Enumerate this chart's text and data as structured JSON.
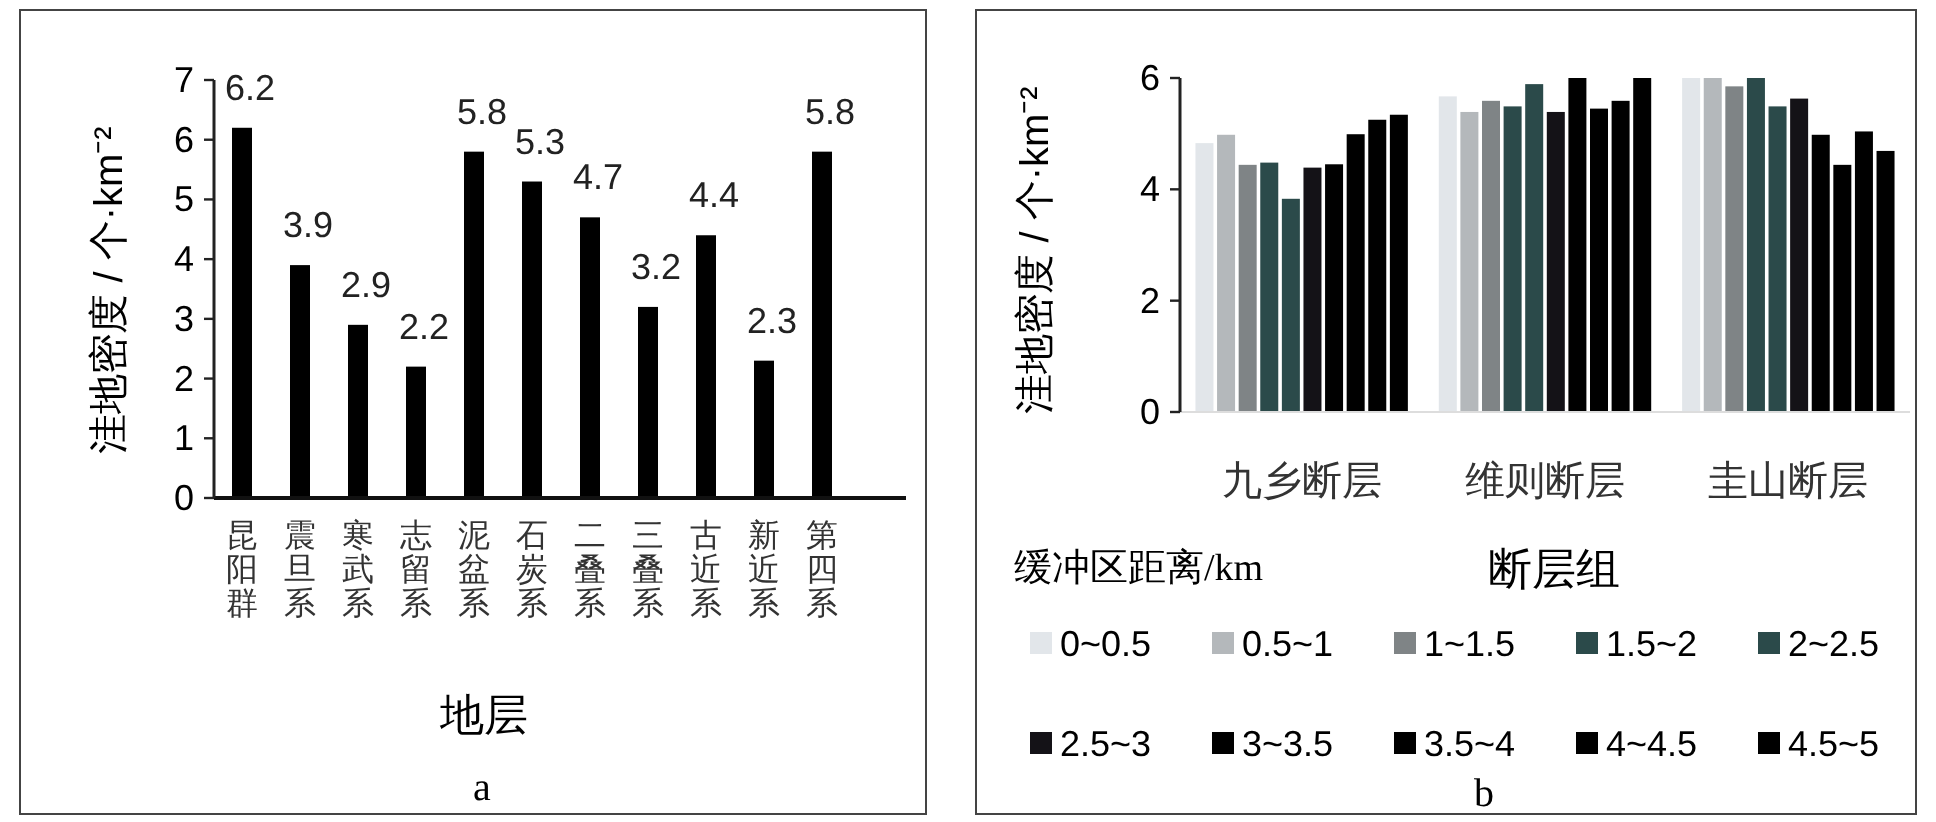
{
  "chart_data": [
    {
      "type": "bar",
      "categories": [
        "昆阳群",
        "震旦系",
        "寒武系",
        "志留系",
        "泥盆系",
        "石炭系",
        "二叠系",
        "三叠系",
        "古近系",
        "新近系",
        "第四系"
      ],
      "values": [
        6.2,
        3.9,
        2.9,
        2.2,
        5.8,
        5.3,
        4.7,
        3.2,
        4.4,
        2.3,
        5.8
      ],
      "color": "#000000",
      "data_labels": true,
      "ylim": [
        0,
        7
      ],
      "yticks": [
        0,
        1,
        2,
        3,
        4,
        5,
        6,
        7
      ],
      "ylabel": "洼地密度 / 个·km⁻²",
      "xlabel": "地层",
      "grid": false,
      "annotations": [
        "a"
      ]
    },
    {
      "type": "bar",
      "categories": [
        "九乡断层",
        "维则断层",
        "圭山断层"
      ],
      "ylim": [
        0,
        6
      ],
      "yticks": [
        0,
        2,
        4,
        6
      ],
      "ylabel": "洼地密度 / 个·km⁻²",
      "xlabel": "断层组",
      "legend_title": "缓冲区距离/km",
      "legend": "bottom",
      "grid": false,
      "annotations": [
        "b"
      ],
      "series": [
        {
          "name": "0~0.5",
          "color": "#e2e6ea",
          "values": [
            4.83,
            5.67,
            6.0
          ]
        },
        {
          "name": "0.5~1",
          "color": "#b4b8bb",
          "values": [
            4.98,
            5.39,
            6.0
          ]
        },
        {
          "name": "1~1.5",
          "color": "#7f8486",
          "values": [
            4.44,
            5.59,
            5.85
          ]
        },
        {
          "name": "1.5~2",
          "color": "#2b4a4a",
          "values": [
            4.48,
            5.49,
            6.0
          ]
        },
        {
          "name": "2~2.5",
          "color": "#2b4a4a",
          "values": [
            3.83,
            5.89,
            5.49
          ]
        },
        {
          "name": "2.5~3",
          "color": "#141217",
          "values": [
            4.39,
            5.39,
            5.63
          ]
        },
        {
          "name": "3~3.5",
          "color": "#000000",
          "values": [
            4.45,
            6.0,
            4.98
          ]
        },
        {
          "name": "3.5~4",
          "color": "#000000",
          "values": [
            4.99,
            5.45,
            4.44
          ]
        },
        {
          "name": "4~4.5",
          "color": "#000000",
          "values": [
            5.25,
            5.59,
            5.04
          ]
        },
        {
          "name": "4.5~5",
          "color": "#000000",
          "values": [
            5.34,
            6.0,
            4.69
          ]
        }
      ]
    }
  ]
}
